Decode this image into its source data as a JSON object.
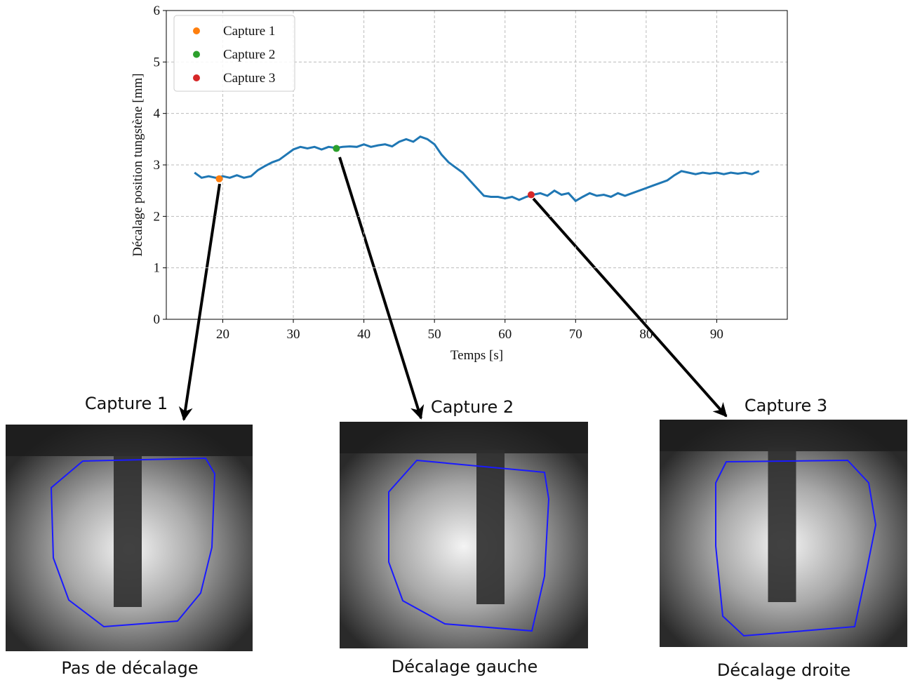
{
  "chart_data": {
    "type": "line",
    "xlabel": "Temps [s]",
    "ylabel": "Décalage position tungstène [mm]",
    "xlim": [
      12,
      100
    ],
    "xticks": [
      20,
      30,
      40,
      50,
      60,
      70,
      80,
      90
    ],
    "ylim": [
      0,
      6
    ],
    "yticks": [
      0,
      1,
      2,
      3,
      4,
      5,
      6
    ],
    "grid": true,
    "legend": "upper left",
    "series": [
      {
        "color": "#1f77b4",
        "x": [
          16,
          17,
          18,
          19,
          20,
          21,
          22,
          23,
          24,
          25,
          26,
          27,
          28,
          29,
          30,
          31,
          32,
          33,
          34,
          35,
          36,
          37,
          38,
          39,
          40,
          41,
          42,
          43,
          44,
          45,
          46,
          47,
          48,
          49,
          50,
          51,
          52,
          53,
          54,
          55,
          56,
          57,
          58,
          59,
          60,
          61,
          62,
          63,
          64,
          65,
          66,
          67,
          68,
          69,
          70,
          71,
          72,
          73,
          74,
          75,
          76,
          77,
          78,
          79,
          80,
          81,
          82,
          83,
          84,
          85,
          86,
          87,
          88,
          89,
          90,
          91,
          92,
          93,
          94,
          95,
          96
        ],
        "values": [
          2.85,
          2.75,
          2.78,
          2.75,
          2.78,
          2.75,
          2.8,
          2.75,
          2.78,
          2.9,
          2.98,
          3.05,
          3.1,
          3.2,
          3.3,
          3.35,
          3.32,
          3.35,
          3.3,
          3.35,
          3.33,
          3.35,
          3.36,
          3.35,
          3.4,
          3.35,
          3.38,
          3.4,
          3.36,
          3.45,
          3.5,
          3.45,
          3.55,
          3.5,
          3.4,
          3.2,
          3.05,
          2.95,
          2.85,
          2.7,
          2.55,
          2.4,
          2.38,
          2.38,
          2.35,
          2.38,
          2.32,
          2.38,
          2.42,
          2.45,
          2.4,
          2.5,
          2.42,
          2.45,
          2.3,
          2.38,
          2.45,
          2.4,
          2.42,
          2.38,
          2.45,
          2.4,
          2.45,
          2.5,
          2.55,
          2.6,
          2.65,
          2.7,
          2.8,
          2.88,
          2.85,
          2.82,
          2.85,
          2.83,
          2.85,
          2.82,
          2.85,
          2.83,
          2.85,
          2.82,
          2.88
        ]
      }
    ],
    "points": [
      {
        "name": "Capture 1",
        "color": "#ff7f0e",
        "x": 19.5,
        "y": 2.73
      },
      {
        "name": "Capture 2",
        "color": "#2ca02c",
        "x": 36.1,
        "y": 3.32
      },
      {
        "name": "Capture 3",
        "color": "#d62728",
        "x": 63.7,
        "y": 2.42
      }
    ]
  },
  "captures": [
    {
      "title": "Capture 1",
      "caption": "Pas de décalage"
    },
    {
      "title": "Capture 2",
      "caption": "Décalage gauche"
    },
    {
      "title": "Capture 3",
      "caption": "Décalage droite"
    }
  ]
}
